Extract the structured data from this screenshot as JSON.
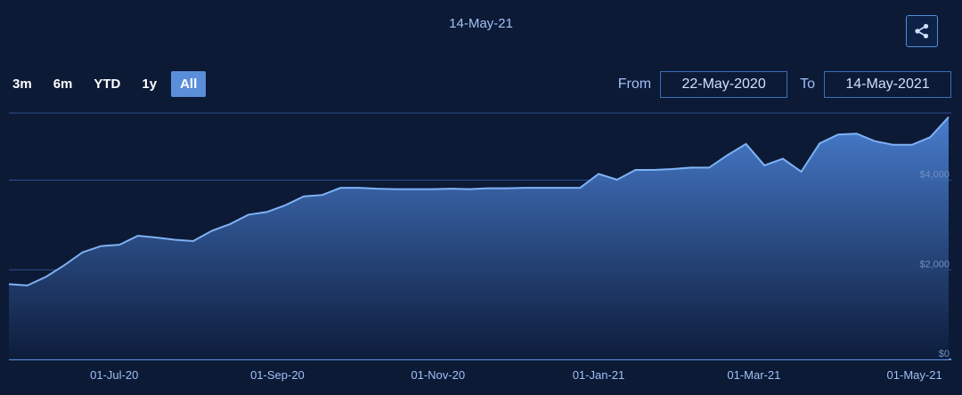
{
  "header": {
    "date_title": "14-May-21"
  },
  "share": {
    "icon": "share-icon"
  },
  "range_buttons": [
    {
      "label": "3m",
      "active": false
    },
    {
      "label": "6m",
      "active": false
    },
    {
      "label": "YTD",
      "active": false
    },
    {
      "label": "1y",
      "active": false
    },
    {
      "label": "All",
      "active": true
    }
  ],
  "date_range": {
    "from_label": "From",
    "from_value": "22-May-2020",
    "to_label": "To",
    "to_value": "14-May-2021"
  },
  "colors": {
    "background": "#0c1a36",
    "line": "#7fb2f5",
    "area_top": "#4b82d6",
    "area_bottom": "#0e1d3c",
    "grid": "#2c4f8f"
  },
  "chart_data": {
    "type": "area",
    "title": "",
    "xlabel": "",
    "ylabel": "",
    "ylim": [
      0,
      5500
    ],
    "x_range": [
      "2020-05-22",
      "2021-05-15"
    ],
    "y_ticks": [
      {
        "value": 0,
        "label": "$0"
      },
      {
        "value": 2000,
        "label": "$2,000"
      },
      {
        "value": 4000,
        "label": "$4,000"
      }
    ],
    "x_ticks": [
      {
        "date": "2020-07-01",
        "label": "01-Jul-20"
      },
      {
        "date": "2020-09-01",
        "label": "01-Sep-20"
      },
      {
        "date": "2020-11-01",
        "label": "01-Nov-20"
      },
      {
        "date": "2021-01-01",
        "label": "01-Jan-21"
      },
      {
        "date": "2021-03-01",
        "label": "01-Mar-21"
      },
      {
        "date": "2021-05-01",
        "label": "01-May-21"
      }
    ],
    "grid": true,
    "legend": "none",
    "series": [
      {
        "points": [
          [
            "2020-05-22",
            1680
          ],
          [
            "2020-05-29",
            1650
          ],
          [
            "2020-06-05",
            1840
          ],
          [
            "2020-06-12",
            2100
          ],
          [
            "2020-06-19",
            2390
          ],
          [
            "2020-06-26",
            2530
          ],
          [
            "2020-07-03",
            2560
          ],
          [
            "2020-07-10",
            2760
          ],
          [
            "2020-07-17",
            2720
          ],
          [
            "2020-07-24",
            2670
          ],
          [
            "2020-07-31",
            2640
          ],
          [
            "2020-08-07",
            2870
          ],
          [
            "2020-08-14",
            3020
          ],
          [
            "2020-08-21",
            3230
          ],
          [
            "2020-08-28",
            3290
          ],
          [
            "2020-09-04",
            3440
          ],
          [
            "2020-09-11",
            3640
          ],
          [
            "2020-09-18",
            3670
          ],
          [
            "2020-09-25",
            3830
          ],
          [
            "2020-10-02",
            3830
          ],
          [
            "2020-10-09",
            3810
          ],
          [
            "2020-10-16",
            3800
          ],
          [
            "2020-10-23",
            3800
          ],
          [
            "2020-10-30",
            3800
          ],
          [
            "2020-11-06",
            3810
          ],
          [
            "2020-11-13",
            3800
          ],
          [
            "2020-11-20",
            3820
          ],
          [
            "2020-11-27",
            3820
          ],
          [
            "2020-12-04",
            3830
          ],
          [
            "2020-12-11",
            3830
          ],
          [
            "2020-12-18",
            3830
          ],
          [
            "2020-12-25",
            3830
          ],
          [
            "2021-01-01",
            4140
          ],
          [
            "2021-01-08",
            4010
          ],
          [
            "2021-01-15",
            4230
          ],
          [
            "2021-01-22",
            4230
          ],
          [
            "2021-01-29",
            4250
          ],
          [
            "2021-02-05",
            4280
          ],
          [
            "2021-02-12",
            4280
          ],
          [
            "2021-02-19",
            4560
          ],
          [
            "2021-02-26",
            4810
          ],
          [
            "2021-03-05",
            4330
          ],
          [
            "2021-03-12",
            4480
          ],
          [
            "2021-03-19",
            4190
          ],
          [
            "2021-03-26",
            4820
          ],
          [
            "2021-04-02",
            5020
          ],
          [
            "2021-04-09",
            5040
          ],
          [
            "2021-04-16",
            4870
          ],
          [
            "2021-04-23",
            4790
          ],
          [
            "2021-04-30",
            4790
          ],
          [
            "2021-05-07",
            4960
          ],
          [
            "2021-05-14",
            5410
          ]
        ]
      }
    ]
  }
}
